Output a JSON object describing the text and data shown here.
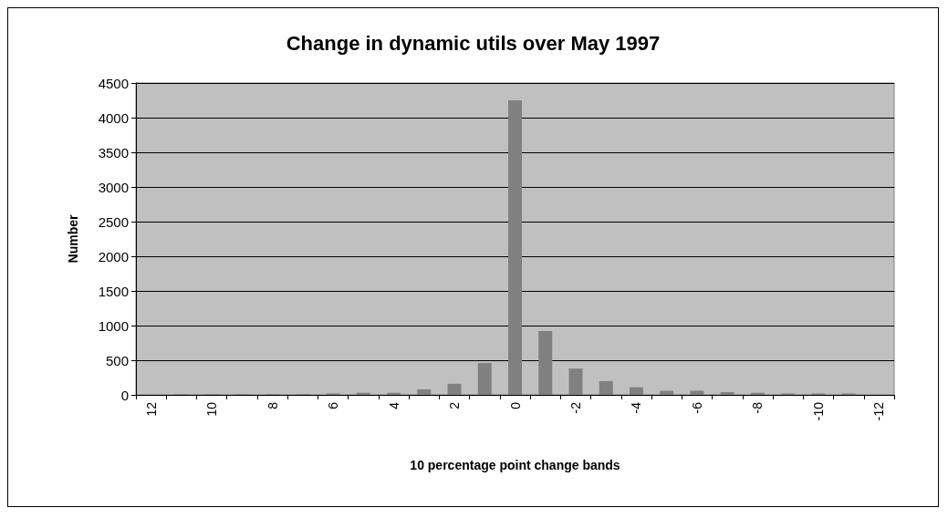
{
  "chart_data": {
    "type": "bar",
    "title": "Change in dynamic utils over May 1997",
    "xlabel": "10 percentage point change bands",
    "ylabel": "Number",
    "categories": [
      "12",
      null,
      "10",
      null,
      "8",
      null,
      "6",
      null,
      "4",
      null,
      "2",
      null,
      "0",
      null,
      "-2",
      null,
      "-4",
      null,
      "-6",
      null,
      "-8",
      null,
      "-10",
      null,
      "-12"
    ],
    "values": [
      0,
      10,
      10,
      10,
      10,
      10,
      20,
      30,
      30,
      80,
      160,
      460,
      4250,
      920,
      380,
      200,
      110,
      60,
      60,
      40,
      30,
      20,
      20,
      20,
      0
    ],
    "color": "#808080",
    "ylim": [
      0,
      4500
    ],
    "yticks": [
      0,
      500,
      1000,
      1500,
      2000,
      2500,
      3000,
      3500,
      4000,
      4500
    ],
    "grid": "y"
  }
}
